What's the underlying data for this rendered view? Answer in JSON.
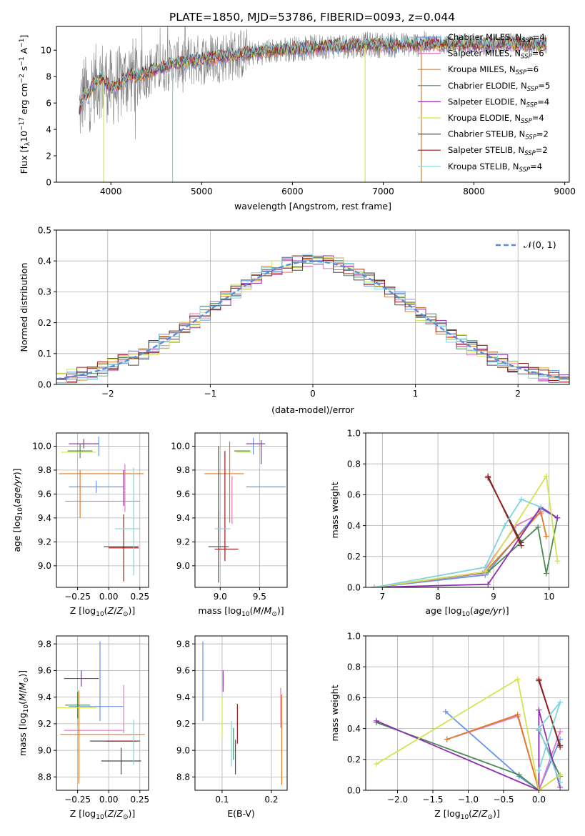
{
  "page": {
    "title": "PLATE=1850, MJD=53786, FIBERID=0093, z=0.044"
  },
  "series_names": [
    "Chabrier MILES, N_SSP=4",
    "Salpeter MILES, N_SSP=6",
    "Kroupa MILES, N_SSP=6",
    "Chabrier ELODIE, N_SSP=5",
    "Salpeter ELODIE, N_SSP=4",
    "Kroupa ELODIE, N_SSP=4",
    "Chabrier STELIB, N_SSP=2",
    "Salpeter STELIB, N_SSP=2",
    "Kroupa STELIB, N_SSP=4"
  ],
  "colors": {
    "data_spectrum": "#808080",
    "series": [
      "#6495ED",
      "#E377C2",
      "#E07B24",
      "#4E8A57",
      "#8E2EB0",
      "#D4E34F",
      "#4A4A4A",
      "#9B1B1B",
      "#7FD4DE"
    ],
    "normal": "#5B8BD9",
    "grid": "#b0b0b0"
  },
  "chart_data": [
    {
      "id": "spectrum",
      "type": "line",
      "title": "PLATE=1850, MJD=53786, FIBERID=0093, z=0.044",
      "xlabel": "wavelength [Angstrom, rest frame]",
      "ylabel": "Flux [f_λ 10^-17 erg cm^-2 s^-1 A^-1]",
      "xlim": [
        3400,
        9050
      ],
      "ylim": [
        0,
        11.8
      ],
      "xticks": [
        4000,
        5000,
        6000,
        7000,
        8000,
        9000
      ],
      "yticks": [
        0,
        2,
        4,
        6,
        8,
        10
      ],
      "grid": false,
      "legend": "top-right",
      "x_range_data": [
        3650,
        8800
      ],
      "model_envelope": {
        "x": [
          3650,
          3700,
          3750,
          3800,
          3900,
          4000,
          4100,
          4200,
          4300,
          4500,
          4700,
          5000,
          5300,
          5600,
          6000,
          6400,
          6800,
          7200,
          7600,
          8000,
          8400,
          8800
        ],
        "y": [
          5.3,
          6.8,
          6.5,
          7.3,
          7.9,
          7.1,
          7.4,
          8.1,
          8.0,
          8.6,
          9.0,
          9.3,
          9.6,
          9.8,
          10.1,
          10.3,
          10.4,
          10.4,
          10.5,
          10.4,
          10.5,
          10.4
        ]
      },
      "dips": [
        {
          "series": "Kroupa ELODIE, N_SSP=4",
          "x": 3920,
          "y_min": 0
        },
        {
          "series": "Kroupa STELIB, N_SSP=4",
          "x": 4680,
          "y_min": 0
        },
        {
          "series": "Kroupa ELODIE, N_SSP=4",
          "x": 6800,
          "y_min": 0
        },
        {
          "series": "Kroupa MILES, N_SSP=6",
          "x": 7420,
          "y_min": 0
        }
      ]
    },
    {
      "id": "residuals",
      "type": "histogram",
      "xlabel": "(data-model)/error",
      "ylabel": "Normed distribution",
      "xlim": [
        -2.5,
        2.5
      ],
      "ylim": [
        0,
        0.5
      ],
      "xticks": [
        -2,
        -1,
        0,
        1,
        2
      ],
      "yticks": [
        0.0,
        0.1,
        0.2,
        0.3,
        0.4,
        0.5
      ],
      "grid": true,
      "legend": "top-right",
      "normal_label": "N(0,1)",
      "bin_width": 0.1,
      "x_start": -2.5
    },
    {
      "id": "Z-age",
      "type": "errorbar",
      "xlabel": "Z [log10(Z/Z⊙)]",
      "ylabel": "age [log10(age/yr)]",
      "xlim": [
        -0.42,
        0.32
      ],
      "ylim": [
        8.82,
        10.11
      ],
      "xticks": [
        -0.25,
        0.0,
        0.25
      ],
      "yticks": [
        9.0,
        9.2,
        9.4,
        9.6,
        9.8,
        10.0
      ],
      "grid": true,
      "points": [
        {
          "series": 0,
          "x": -0.1,
          "xerr": 0.22,
          "y": 9.66,
          "yerr": 0.05
        },
        {
          "series": 0,
          "x": -0.08,
          "xerr": 0.0,
          "y": 10.0,
          "yerr": 0.08
        },
        {
          "series": 1,
          "x": -0.05,
          "xerr": 0.3,
          "y": 9.54,
          "yerr": 0.0
        },
        {
          "series": 1,
          "x": 0.13,
          "xerr": 0.0,
          "y": 9.65,
          "yerr": 0.2
        },
        {
          "series": 2,
          "x": -0.06,
          "xerr": 0.34,
          "y": 9.77,
          "yerr": 0.0
        },
        {
          "series": 2,
          "x": -0.23,
          "xerr": 0.0,
          "y": 9.6,
          "yerr": 0.2
        },
        {
          "series": 3,
          "x": -0.23,
          "xerr": 0.1,
          "y": 9.96,
          "yerr": 0.06
        },
        {
          "series": 4,
          "x": -0.2,
          "xerr": 0.12,
          "y": 10.02,
          "yerr": 0.04
        },
        {
          "series": 4,
          "x": 0.12,
          "xerr": 0.0,
          "y": 9.65,
          "yerr": 0.15
        },
        {
          "series": 5,
          "x": -0.24,
          "xerr": 0.14,
          "y": 9.95,
          "yerr": 0.0
        },
        {
          "series": 6,
          "x": 0.1,
          "xerr": 0.14,
          "y": 9.16,
          "yerr": 0.0
        },
        {
          "series": 7,
          "x": 0.12,
          "xerr": 0.12,
          "y": 9.15,
          "yerr": 0.28
        },
        {
          "series": 8,
          "x": 0.15,
          "xerr": 0.1,
          "y": 9.31,
          "yerr": 0.0
        },
        {
          "series": 8,
          "x": 0.2,
          "xerr": 0.0,
          "y": 9.37,
          "yerr": 0.45
        }
      ]
    },
    {
      "id": "mass-age",
      "type": "errorbar",
      "xlabel": "mass [log10(M/M⊙)]",
      "ylabel": "",
      "xlim": [
        8.68,
        9.85
      ],
      "ylim": [
        8.82,
        10.11
      ],
      "xticks": [
        9.0,
        9.5
      ],
      "yticks": [
        9.0,
        9.2,
        9.4,
        9.6,
        9.8,
        10.0
      ],
      "grid": true,
      "points": [
        {
          "series": 0,
          "x": 9.58,
          "xerr": 0.25,
          "y": 9.66,
          "yerr": 0.0
        },
        {
          "series": 0,
          "x": 9.42,
          "xerr": 0.0,
          "y": 10.0,
          "yerr": 0.07
        },
        {
          "series": 1,
          "x": 9.15,
          "xerr": 0.0,
          "y": 9.55,
          "yerr": 0.2
        },
        {
          "series": 2,
          "x": 9.05,
          "xerr": 0.25,
          "y": 9.77,
          "yerr": 0.0
        },
        {
          "series": 2,
          "x": 9.12,
          "xerr": 0.0,
          "y": 9.7,
          "yerr": 0.34
        },
        {
          "series": 3,
          "x": 9.28,
          "xerr": 0.1,
          "y": 9.96,
          "yerr": 0.0
        },
        {
          "series": 4,
          "x": 9.45,
          "xerr": 0.12,
          "y": 10.02,
          "yerr": 0.0
        },
        {
          "series": 4,
          "x": 9.52,
          "xerr": 0.0,
          "y": 9.95,
          "yerr": 0.1
        },
        {
          "series": 5,
          "x": 9.3,
          "xerr": 0.1,
          "y": 9.95,
          "yerr": 0.0
        },
        {
          "series": 6,
          "x": 8.98,
          "xerr": 0.13,
          "y": 9.16,
          "yerr": 0.3
        },
        {
          "series": 6,
          "x": 8.98,
          "xerr": 0.0,
          "y": 9.6,
          "yerr": 0.4
        },
        {
          "series": 7,
          "x": 9.08,
          "xerr": 0.15,
          "y": 9.14,
          "yerr": 0.0
        },
        {
          "series": 7,
          "x": 9.06,
          "xerr": 0.0,
          "y": 9.5,
          "yerr": 0.46
        },
        {
          "series": 8,
          "x": 9.03,
          "xerr": 0.1,
          "y": 9.31,
          "yerr": 0.0
        }
      ]
    },
    {
      "id": "age-weight",
      "type": "line",
      "xlabel": "age [log10(age/yr)]",
      "ylabel": "mass weight",
      "xlim": [
        6.7,
        10.35
      ],
      "ylim": [
        0,
        1.0
      ],
      "xticks": [
        7,
        8,
        9,
        10
      ],
      "yticks": [
        0.0,
        0.2,
        0.4,
        0.6,
        0.8,
        1.0
      ],
      "grid": true,
      "series": [
        {
          "series": 0,
          "x": [
            6.85,
            8.85,
            9.85,
            10.15
          ],
          "y": [
            0.0,
            0.08,
            0.51,
            0.45
          ]
        },
        {
          "series": 1,
          "x": [
            6.85,
            8.8,
            9.4,
            9.85
          ],
          "y": [
            0.0,
            0.09,
            0.4,
            0.48
          ]
        },
        {
          "series": 2,
          "x": [
            6.85,
            8.85,
            9.85,
            9.95
          ],
          "y": [
            0.0,
            0.1,
            0.49,
            0.33
          ]
        },
        {
          "series": 3,
          "x": [
            6.85,
            8.9,
            9.8,
            9.95,
            10.15
          ],
          "y": [
            0.0,
            0.1,
            0.39,
            0.09,
            0.45
          ]
        },
        {
          "series": 4,
          "x": [
            6.85,
            8.9,
            9.85,
            10.15
          ],
          "y": [
            0.0,
            0.02,
            0.52,
            0.45
          ]
        },
        {
          "series": 5,
          "x": [
            6.85,
            8.85,
            9.95,
            10.15
          ],
          "y": [
            0.0,
            0.1,
            0.72,
            0.17
          ]
        },
        {
          "series": 6,
          "x": [
            8.9,
            9.5
          ],
          "y": [
            0.71,
            0.29
          ]
        },
        {
          "series": 7,
          "x": [
            8.9,
            9.5
          ],
          "y": [
            0.72,
            0.27
          ]
        },
        {
          "series": 8,
          "x": [
            6.85,
            8.85,
            9.2,
            9.5,
            9.85
          ],
          "y": [
            0.0,
            0.13,
            0.4,
            0.57,
            0.52
          ]
        }
      ]
    },
    {
      "id": "Z-mass",
      "type": "errorbar",
      "xlabel": "Z [log10(Z/Z⊙)]",
      "ylabel": "mass [log10(M/M⊙)]",
      "xlim": [
        -0.42,
        0.32
      ],
      "ylim": [
        8.7,
        9.86
      ],
      "xticks": [
        -0.25,
        0.0,
        0.25
      ],
      "yticks": [
        8.8,
        9.0,
        9.2,
        9.4,
        9.6,
        9.8
      ],
      "grid": true,
      "points": [
        {
          "series": 0,
          "x": -0.07,
          "xerr": 0.0,
          "y": 9.52,
          "yerr": 0.3
        },
        {
          "series": 0,
          "x": -0.1,
          "xerr": 0.22,
          "y": 9.33,
          "yerr": 0.0
        },
        {
          "series": 1,
          "x": -0.12,
          "xerr": 0.24,
          "y": 9.15,
          "yerr": 0.0
        },
        {
          "series": 1,
          "x": 0.12,
          "xerr": 0.0,
          "y": 9.31,
          "yerr": 0.18
        },
        {
          "series": 2,
          "x": -0.05,
          "xerr": 0.34,
          "y": 9.12,
          "yerr": 0.0
        },
        {
          "series": 2,
          "x": -0.24,
          "xerr": 0.0,
          "y": 9.1,
          "yerr": 0.35
        },
        {
          "series": 3,
          "x": -0.25,
          "xerr": 0.1,
          "y": 9.34,
          "yerr": 0.1
        },
        {
          "series": 4,
          "x": -0.22,
          "xerr": 0.14,
          "y": 9.54,
          "yerr": 0.06
        },
        {
          "series": 5,
          "x": -0.26,
          "xerr": 0.16,
          "y": 9.32,
          "yerr": 0.0
        },
        {
          "series": 6,
          "x": 0.1,
          "xerr": 0.16,
          "y": 8.92,
          "yerr": 0.1
        },
        {
          "series": 6,
          "x": 0.05,
          "xerr": 0.2,
          "y": 9.07,
          "yerr": 0.0
        },
        {
          "series": 7,
          "x": 0.1,
          "xerr": 0.12,
          "y": 9.07,
          "yerr": 0.0
        },
        {
          "series": 8,
          "x": 0.2,
          "xerr": 0.0,
          "y": 9.06,
          "yerr": 0.17
        }
      ]
    },
    {
      "id": "ebv-mass",
      "type": "errorbar",
      "xlabel": "E(B-V)",
      "ylabel": "",
      "xlim": [
        0.045,
        0.232
      ],
      "ylim": [
        8.7,
        9.86
      ],
      "xticks": [
        0.1,
        0.2
      ],
      "yticks": [
        8.8,
        9.0,
        9.2,
        9.4,
        9.6,
        9.8
      ],
      "grid": true,
      "points": [
        {
          "series": 0,
          "x": 0.061,
          "xerr": 0.0,
          "y": 9.52,
          "yerr": 0.3
        },
        {
          "series": 1,
          "x": 0.219,
          "xerr": 0.0,
          "y": 9.32,
          "yerr": 0.15
        },
        {
          "series": 2,
          "x": 0.221,
          "xerr": 0.0,
          "y": 9.08,
          "yerr": 0.34
        },
        {
          "series": 3,
          "x": 0.123,
          "xerr": 0.0,
          "y": 9.05,
          "yerr": 0.12
        },
        {
          "series": 4,
          "x": 0.102,
          "xerr": 0.0,
          "y": 9.52,
          "yerr": 0.08
        },
        {
          "series": 5,
          "x": 0.1,
          "xerr": 0.0,
          "y": 9.25,
          "yerr": 0.15
        },
        {
          "series": 6,
          "x": 0.127,
          "xerr": 0.0,
          "y": 8.95,
          "yerr": 0.13
        },
        {
          "series": 7,
          "x": 0.131,
          "xerr": 0.0,
          "y": 9.2,
          "yerr": 0.15
        },
        {
          "series": 8,
          "x": 0.119,
          "xerr": 0.0,
          "y": 9.05,
          "yerr": 0.17
        }
      ]
    },
    {
      "id": "Z-weight",
      "type": "line",
      "xlabel": "Z [log10(Z/Z⊙)]",
      "ylabel": "mass weight",
      "xlim": [
        -2.45,
        0.42
      ],
      "ylim": [
        0,
        1.0
      ],
      "xticks": [
        -2.0,
        -1.5,
        -1.0,
        -0.5,
        0.0
      ],
      "yticks": [
        0.0,
        0.2,
        0.4,
        0.6,
        0.8,
        1.0
      ],
      "grid": true,
      "series": [
        {
          "series": 0,
          "x": [
            -1.32,
            -0.28,
            0.0,
            0.3
          ],
          "y": [
            0.51,
            0.09,
            0.0,
            0.33
          ]
        },
        {
          "series": 1,
          "x": [
            -1.3,
            -0.3,
            0.0,
            0.3
          ],
          "y": [
            0.33,
            0.48,
            0.0,
            0.38
          ]
        },
        {
          "series": 2,
          "x": [
            -1.3,
            -0.3,
            0.0,
            0.3
          ],
          "y": [
            0.33,
            0.49,
            0.0,
            0.1
          ]
        },
        {
          "series": 3,
          "x": [
            -2.3,
            -0.28,
            0.0,
            0.0,
            0.3
          ],
          "y": [
            0.44,
            0.1,
            0.0,
            0.39,
            0.09
          ]
        },
        {
          "series": 4,
          "x": [
            -2.3,
            0.0,
            0.0,
            0.3
          ],
          "y": [
            0.45,
            0.0,
            0.52,
            0.02
          ]
        },
        {
          "series": 5,
          "x": [
            -2.3,
            -0.3,
            0.0,
            0.3
          ],
          "y": [
            0.17,
            0.72,
            0.0,
            0.1
          ]
        },
        {
          "series": 6,
          "x": [
            0.0,
            0.3
          ],
          "y": [
            0.71,
            0.29
          ]
        },
        {
          "series": 7,
          "x": [
            0.0,
            0.3
          ],
          "y": [
            0.72,
            0.28
          ]
        },
        {
          "series": 8,
          "x": [
            0.0,
            0.3,
            0.0,
            0.3
          ],
          "y": [
            0.13,
            0.57,
            0.4,
            0.05
          ]
        }
      ]
    }
  ]
}
